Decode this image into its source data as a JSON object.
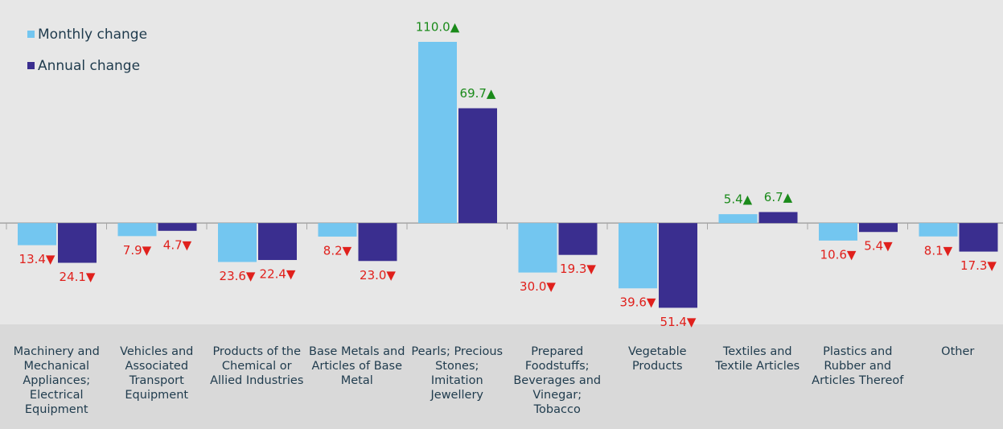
{
  "chart_data": {
    "type": "bar",
    "categories": [
      "Machinery and Mechanical Appliances; Electrical Equipment",
      "Vehicles and Associated Transport Equipment",
      "Products of the Chemical or Allied Industries",
      "Base Metals and Articles of Base Metal",
      "Pearls; Precious Stones; Imitation Jewellery",
      "Prepared Foodstuffs; Beverages and Vinegar; Tobacco",
      "Vegetable Products",
      "Textiles and Textile Articles",
      "Plastics and Rubber and Articles Thereof",
      "Other"
    ],
    "series": [
      {
        "name": "Monthly change",
        "color": "#73c6f0",
        "values": [
          -13.4,
          -7.9,
          -23.6,
          -8.2,
          110.0,
          -30.0,
          -39.6,
          5.4,
          -10.6,
          -8.1
        ],
        "value_labels": [
          "13.4▼",
          "7.9▼",
          "23.6▼",
          "8.2▼",
          "110.0▲",
          "30.0▼",
          "39.6▼",
          "5.4▲",
          "10.6▼",
          "8.1▼"
        ]
      },
      {
        "name": "Annual change",
        "color": "#3a2e8f",
        "values": [
          -24.1,
          -4.7,
          -22.4,
          -23.0,
          69.7,
          -19.3,
          -51.4,
          6.7,
          -5.4,
          -17.3
        ],
        "value_labels": [
          "24.1▼",
          "4.7▼",
          "22.4▼",
          "23.0▼",
          "69.7▲",
          "19.3▼",
          "51.4▼",
          "6.7▲",
          "5.4▼",
          "17.3▼"
        ]
      }
    ],
    "ylim": [
      -60,
      135.4
    ],
    "legend": "upper left",
    "positive_color": "#1a8a1a",
    "negative_color": "#e0201c"
  }
}
